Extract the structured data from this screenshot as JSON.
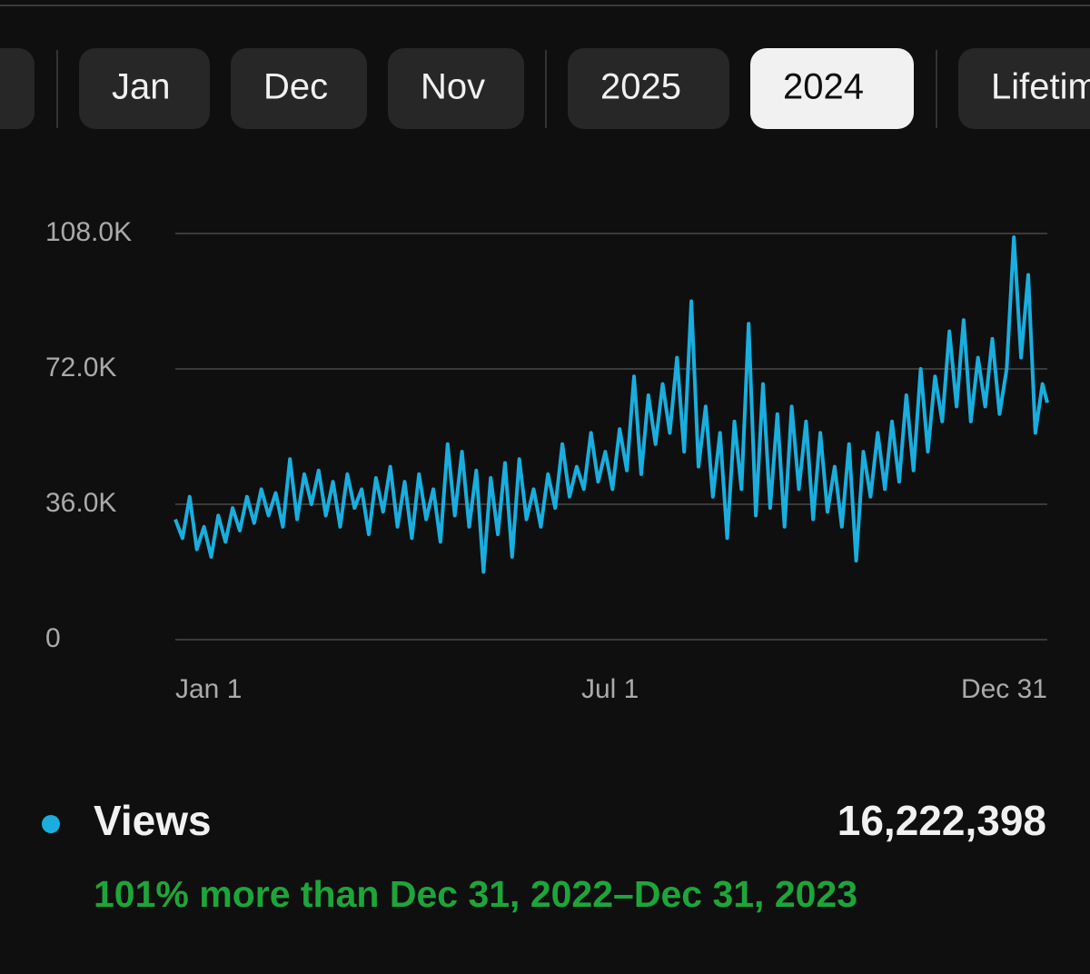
{
  "tabs": [
    "Jan",
    "Dec",
    "Nov",
    "2025",
    "2024",
    "Lifetime"
  ],
  "selected_tab": 4,
  "chart_data": {
    "type": "line",
    "x": [
      0,
      3,
      6,
      9,
      12,
      15,
      18,
      21,
      24,
      27,
      30,
      33,
      36,
      39,
      42,
      45,
      48,
      51,
      54,
      57,
      60,
      63,
      66,
      69,
      72,
      75,
      78,
      81,
      84,
      87,
      90,
      93,
      96,
      99,
      102,
      105,
      108,
      111,
      114,
      117,
      120,
      123,
      126,
      129,
      132,
      135,
      138,
      141,
      144,
      147,
      150,
      153,
      156,
      159,
      162,
      165,
      168,
      171,
      174,
      177,
      180,
      183,
      186,
      189,
      192,
      195,
      198,
      201,
      204,
      207,
      210,
      213,
      216,
      219,
      222,
      225,
      228,
      231,
      234,
      237,
      240,
      243,
      246,
      249,
      252,
      255,
      258,
      261,
      264,
      267,
      270,
      273,
      276,
      279,
      282,
      285,
      288,
      291,
      294,
      297,
      300,
      303,
      306,
      309,
      312,
      315,
      318,
      321,
      324,
      327,
      330,
      333,
      336,
      339,
      342,
      345,
      348,
      351,
      354,
      357,
      360,
      363,
      365
    ],
    "series": [
      {
        "name": "Views",
        "color": "#19aede",
        "values": [
          32000,
          27000,
          38000,
          24000,
          30000,
          22000,
          33000,
          26000,
          35000,
          29000,
          38000,
          31000,
          40000,
          33000,
          39000,
          30000,
          48000,
          32000,
          44000,
          36000,
          45000,
          33000,
          42000,
          30000,
          44000,
          35000,
          40000,
          28000,
          43000,
          34000,
          46000,
          30000,
          42000,
          27000,
          44000,
          32000,
          40000,
          26000,
          52000,
          33000,
          50000,
          30000,
          45000,
          18000,
          43000,
          28000,
          47000,
          22000,
          48000,
          32000,
          40000,
          30000,
          44000,
          35000,
          52000,
          38000,
          46000,
          40000,
          55000,
          42000,
          50000,
          40000,
          56000,
          45000,
          70000,
          44000,
          65000,
          52000,
          68000,
          55000,
          75000,
          50000,
          90000,
          46000,
          62000,
          38000,
          55000,
          27000,
          58000,
          40000,
          84000,
          33000,
          68000,
          35000,
          60000,
          30000,
          62000,
          40000,
          58000,
          32000,
          55000,
          34000,
          46000,
          30000,
          52000,
          21000,
          50000,
          38000,
          55000,
          40000,
          58000,
          42000,
          65000,
          45000,
          72000,
          50000,
          70000,
          58000,
          82000,
          62000,
          85000,
          58000,
          75000,
          62000,
          80000,
          60000,
          72000,
          107000,
          75000,
          97000,
          55000,
          68000,
          63000
        ]
      }
    ],
    "xlim": [
      0,
      365
    ],
    "xticks": [
      {
        "value": 0,
        "label": "Jan 1"
      },
      {
        "value": 182,
        "label": "Jul 1"
      },
      {
        "value": 365,
        "label": "Dec 31"
      }
    ],
    "ylim": [
      0,
      108000
    ],
    "yticks": [
      0,
      {
        "value": 36000,
        "label": "36.0K"
      },
      {
        "value": 72000,
        "label": "72.0K"
      },
      {
        "value": 108000,
        "label": "108.0K"
      }
    ],
    "grid": true,
    "total": "16,222,398",
    "comparison": "101% more than Dec 31, 2022–Dec 31, 2023",
    "comparison_color": "#1ea53a"
  }
}
